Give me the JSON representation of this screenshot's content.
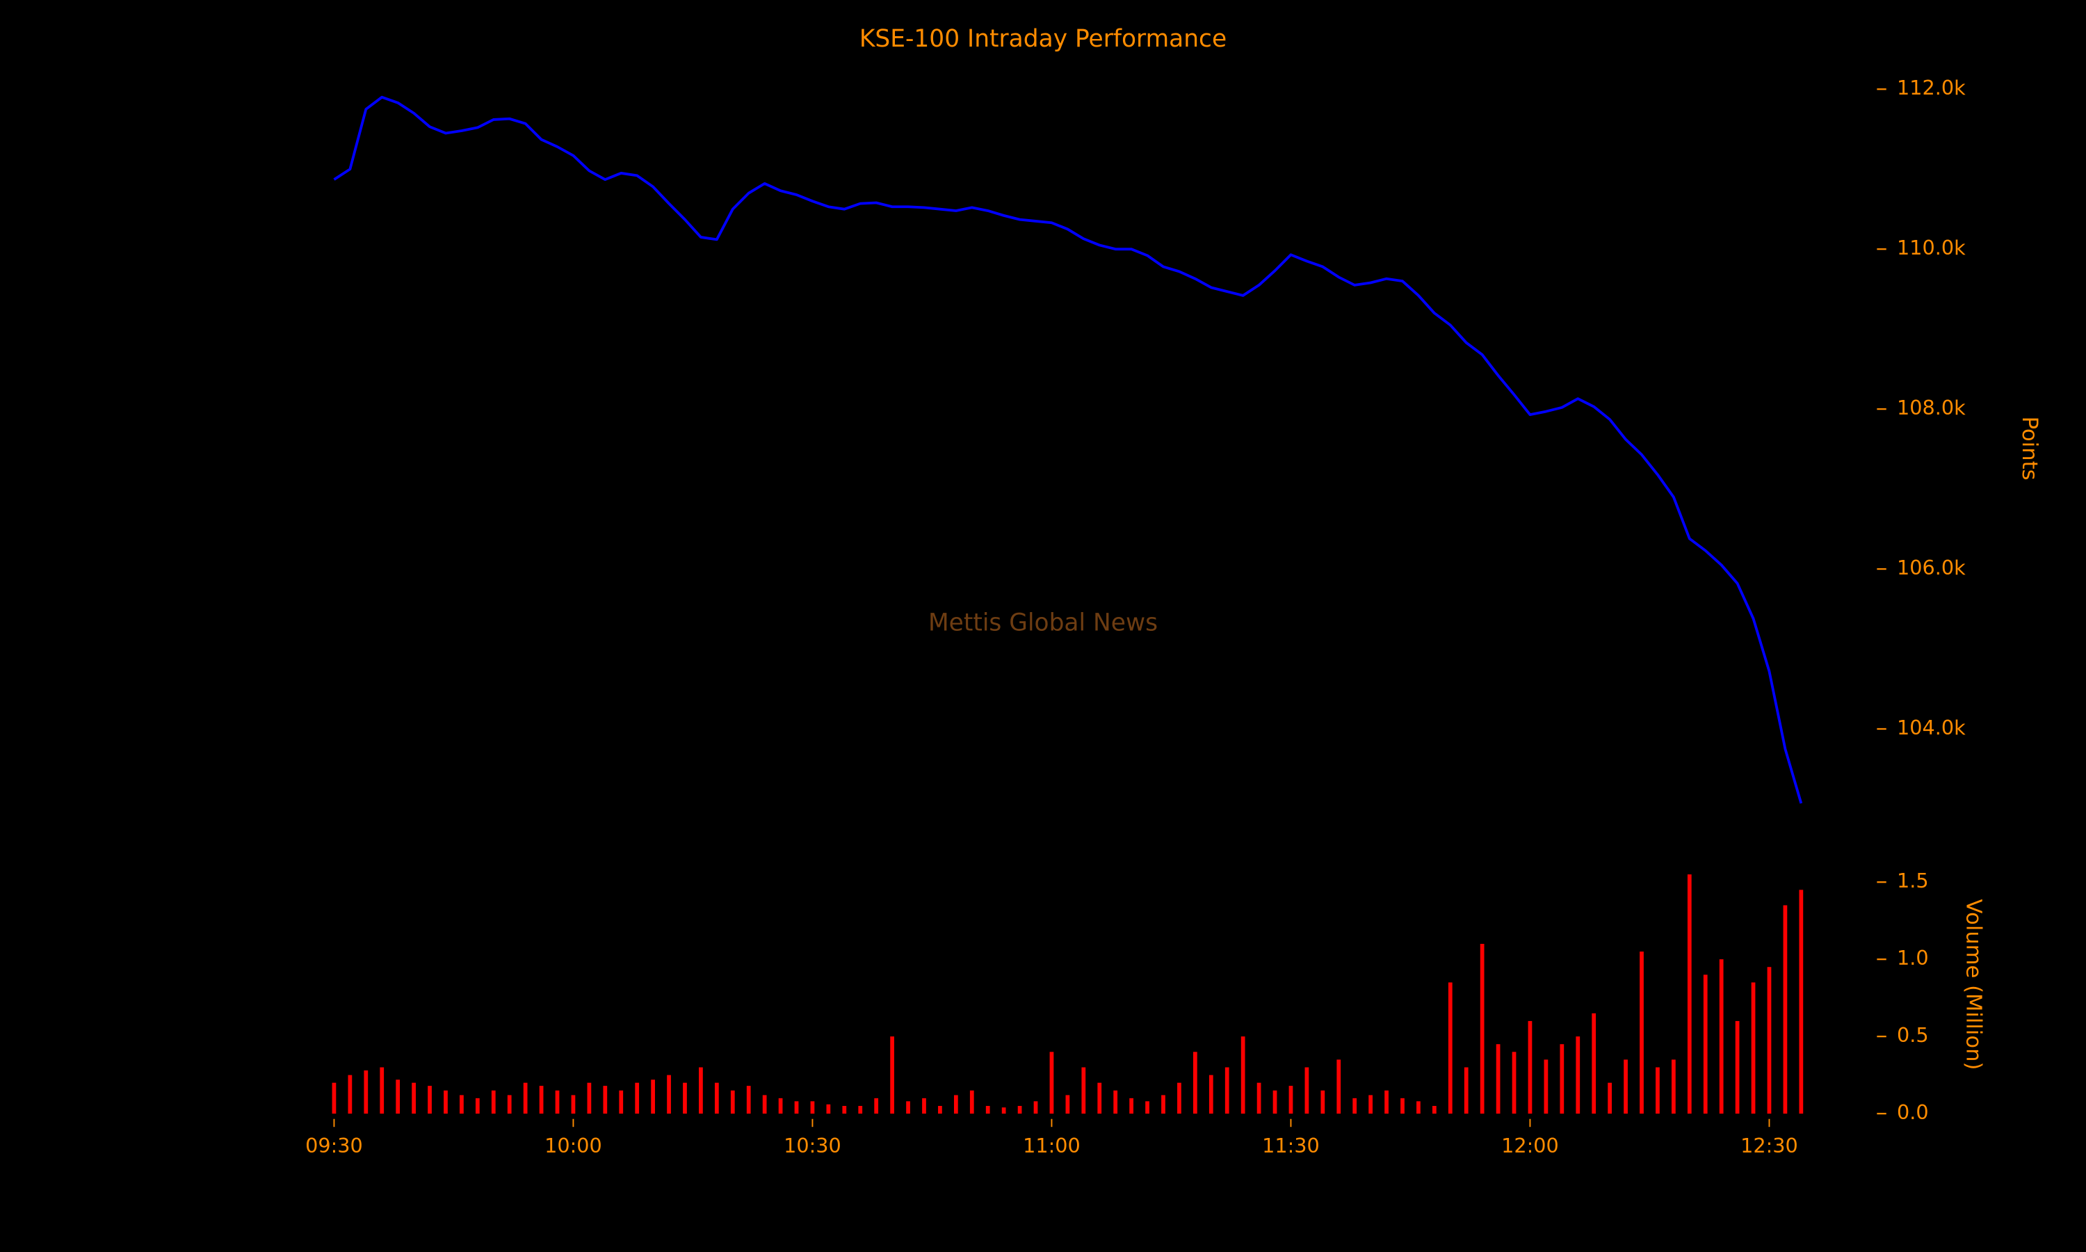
{
  "chart_data": [
    {
      "type": "line",
      "title": "KSE-100 Intraday Performance",
      "watermark": "Mettis Global News",
      "ylabel": "Points",
      "color": "#0000ff",
      "x": [
        "09:30",
        "09:32",
        "09:34",
        "09:36",
        "09:38",
        "09:40",
        "09:42",
        "09:44",
        "09:46",
        "09:48",
        "09:50",
        "09:52",
        "09:54",
        "09:56",
        "09:58",
        "10:00",
        "10:02",
        "10:04",
        "10:06",
        "10:08",
        "10:10",
        "10:12",
        "10:14",
        "10:16",
        "10:18",
        "10:20",
        "10:22",
        "10:24",
        "10:26",
        "10:28",
        "10:30",
        "10:32",
        "10:34",
        "10:36",
        "10:38",
        "10:40",
        "10:42",
        "10:44",
        "10:46",
        "10:48",
        "10:50",
        "10:52",
        "10:54",
        "10:56",
        "10:58",
        "11:00",
        "11:02",
        "11:04",
        "11:06",
        "11:08",
        "11:10",
        "11:12",
        "11:14",
        "11:16",
        "11:18",
        "11:20",
        "11:22",
        "11:24",
        "11:26",
        "11:28",
        "11:30",
        "11:32",
        "11:34",
        "11:36",
        "11:38",
        "11:40",
        "11:42",
        "11:44",
        "11:46",
        "11:48",
        "11:50",
        "11:52",
        "11:54",
        "11:56",
        "11:58",
        "12:00",
        "12:02",
        "12:04",
        "12:06",
        "12:08",
        "12:10",
        "12:12",
        "12:14",
        "12:16",
        "12:18",
        "12:20",
        "12:22",
        "12:24",
        "12:26",
        "12:28",
        "12:30",
        "12:32",
        "12:34"
      ],
      "values": [
        110870,
        111000,
        111750,
        111900,
        111830,
        111700,
        111530,
        111450,
        111480,
        111520,
        111620,
        111630,
        111570,
        111370,
        111280,
        111170,
        110980,
        110870,
        110950,
        110920,
        110780,
        110570,
        110370,
        110150,
        110120,
        110500,
        110700,
        110820,
        110730,
        110680,
        110600,
        110530,
        110500,
        110570,
        110580,
        110530,
        110530,
        110520,
        110500,
        110480,
        110520,
        110480,
        110420,
        110370,
        110350,
        110330,
        110250,
        110130,
        110050,
        110000,
        110000,
        109920,
        109780,
        109720,
        109630,
        109520,
        109470,
        109420,
        109550,
        109730,
        109930,
        109850,
        109780,
        109650,
        109550,
        109580,
        109630,
        109600,
        109420,
        109200,
        109050,
        108830,
        108680,
        108420,
        108180,
        107930,
        107970,
        108020,
        108130,
        108030,
        107870,
        107620,
        107430,
        107180,
        106900,
        106380,
        106230,
        106050,
        105820,
        105380,
        104720,
        103750,
        103070
      ],
      "xlim": [
        "09:30",
        "12:35"
      ],
      "xticks": [
        "09:30",
        "10:00",
        "10:30",
        "11:00",
        "11:30",
        "12:00",
        "12:30"
      ],
      "ylim": [
        102800,
        112300
      ],
      "yticks": [
        {
          "value": 104000,
          "label": "104.0k"
        },
        {
          "value": 106000,
          "label": "106.0k"
        },
        {
          "value": 108000,
          "label": "108.0k"
        },
        {
          "value": 110000,
          "label": "110.0k"
        },
        {
          "value": 112000,
          "label": "112.0k"
        }
      ]
    },
    {
      "type": "bar",
      "ylabel": "Volume (Million)",
      "color": "#ff0000",
      "values": [
        0.2,
        0.25,
        0.28,
        0.3,
        0.22,
        0.2,
        0.18,
        0.15,
        0.12,
        0.1,
        0.15,
        0.12,
        0.2,
        0.18,
        0.15,
        0.12,
        0.2,
        0.18,
        0.15,
        0.2,
        0.22,
        0.25,
        0.2,
        0.3,
        0.2,
        0.15,
        0.18,
        0.12,
        0.1,
        0.08,
        0.08,
        0.06,
        0.05,
        0.05,
        0.1,
        0.5,
        0.08,
        0.1,
        0.05,
        0.12,
        0.15,
        0.05,
        0.04,
        0.05,
        0.08,
        0.4,
        0.12,
        0.3,
        0.2,
        0.15,
        0.1,
        0.08,
        0.12,
        0.2,
        0.4,
        0.25,
        0.3,
        0.5,
        0.2,
        0.15,
        0.18,
        0.3,
        0.15,
        0.35,
        0.1,
        0.12,
        0.15,
        0.1,
        0.08,
        0.05,
        0.85,
        0.3,
        1.1,
        0.45,
        0.4,
        0.6,
        0.35,
        0.45,
        0.5,
        0.65,
        0.2,
        0.35,
        1.05,
        0.3,
        0.35,
        1.55,
        0.9,
        1.0,
        0.6,
        0.85,
        0.95,
        1.35,
        1.45
      ],
      "ylim": [
        0,
        1.6
      ],
      "yticks": [
        {
          "value": 0,
          "label": "0.0"
        },
        0.5,
        {
          "value": 1,
          "label": "1.0"
        },
        1.5
      ]
    }
  ]
}
